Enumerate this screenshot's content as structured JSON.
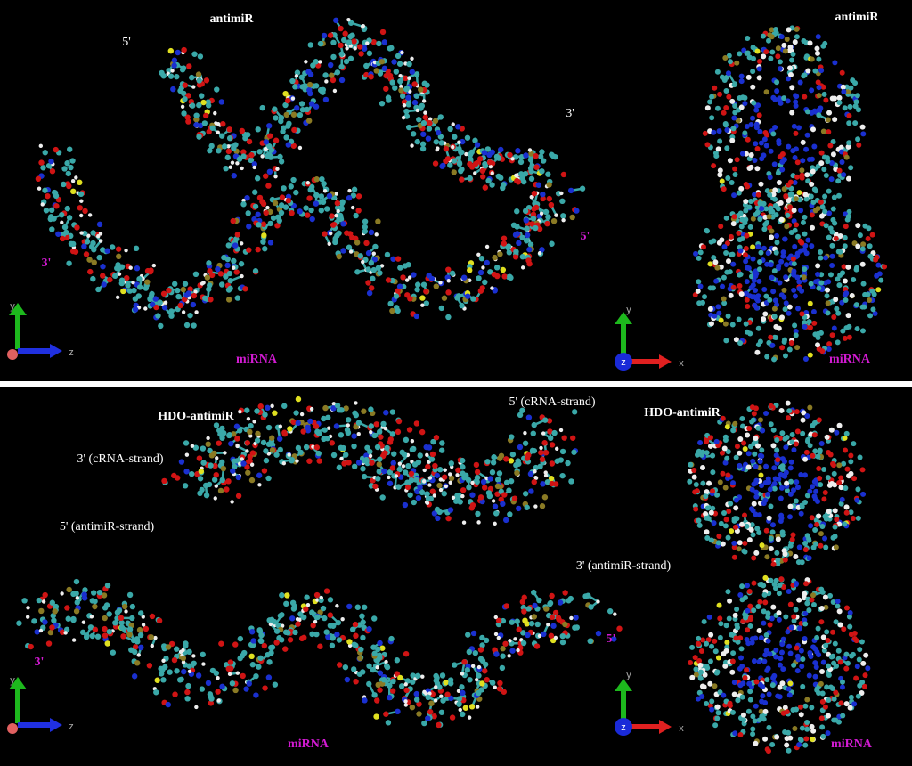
{
  "top": {
    "left": {
      "title": "antimiR",
      "antimir_5": "5'",
      "antimir_3": "3'",
      "mirna_3": "3'",
      "mirna_5": "5'",
      "mirna": "miRNA",
      "axis_y": "y",
      "axis_z": "z"
    },
    "right": {
      "title": "antimiR",
      "mirna": "miRNA",
      "axis_y": "y",
      "axis_z": "z",
      "axis_x": "x"
    }
  },
  "bottom": {
    "left": {
      "title": "HDO-antimiR",
      "crna_3": "3' (cRNA-strand)",
      "antimir_5": "5' (antimiR-strand)",
      "crna_5": "5' (cRNA-strand)",
      "antimir_3": "3' (antimiR-strand)",
      "mirna_3": "3'",
      "mirna_5": "5'",
      "mirna": "miRNA",
      "axis_y": "y",
      "axis_z": "z"
    },
    "right": {
      "title": "HDO-antimiR",
      "mirna": "miRNA",
      "axis_y": "y",
      "axis_z": "z",
      "axis_x": "x"
    }
  }
}
